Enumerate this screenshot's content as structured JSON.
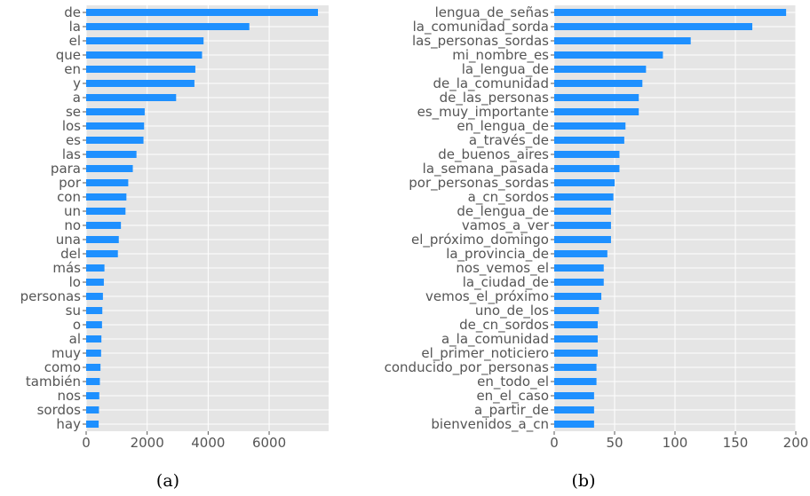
{
  "chart_data": [
    {
      "type": "bar",
      "orientation": "horizontal",
      "caption": "(a)",
      "categories": [
        "de",
        "la",
        "el",
        "que",
        "en",
        "y",
        "a",
        "se",
        "los",
        "es",
        "las",
        "para",
        "por",
        "con",
        "un",
        "no",
        "una",
        "del",
        "más",
        "lo",
        "personas",
        "su",
        "o",
        "al",
        "muy",
        "como",
        "también",
        "nos",
        "sordos",
        "hay"
      ],
      "values": [
        7600,
        5350,
        3850,
        3800,
        3580,
        3550,
        2950,
        1920,
        1900,
        1880,
        1650,
        1530,
        1380,
        1320,
        1290,
        1140,
        1070,
        1040,
        600,
        580,
        550,
        530,
        520,
        500,
        490,
        470,
        450,
        430,
        420,
        410
      ],
      "xticks": [
        0,
        2000,
        4000,
        6000
      ],
      "xlim": [
        0,
        7950
      ],
      "xlabel": "",
      "ylabel": "",
      "grid": true,
      "bar_color": "#1e90ff",
      "background": "#e5e5e5"
    },
    {
      "type": "bar",
      "orientation": "horizontal",
      "caption": "(b)",
      "categories": [
        "lengua_de_señas",
        "la_comunidad_sorda",
        "las_personas_sordas",
        "mi_nombre_es",
        "la_lengua_de",
        "de_la_comunidad",
        "de_las_personas",
        "es_muy_importante",
        "en_lengua_de",
        "a_través_de",
        "de_buenos_aires",
        "la_semana_pasada",
        "por_personas_sordas",
        "a_cn_sordos",
        "de_lengua_de",
        "vamos_a_ver",
        "el_próximo_domingo",
        "la_provincia_de",
        "nos_vemos_el",
        "la_ciudad_de",
        "vemos_el_próximo",
        "uno_de_los",
        "de_cn_sordos",
        "a_la_comunidad",
        "el_primer_noticiero",
        "conducido_por_personas",
        "en_todo_el",
        "en_el_caso",
        "a_partir_de",
        "bienvenidos_a_cn"
      ],
      "values": [
        192,
        164,
        113,
        90,
        76,
        73,
        70,
        70,
        59,
        58,
        54,
        54,
        50,
        49,
        47,
        47,
        47,
        44,
        41,
        41,
        39,
        37,
        36,
        36,
        36,
        35,
        35,
        33,
        33,
        33
      ],
      "xticks": [
        0,
        50,
        100,
        150,
        200
      ],
      "xlim": [
        0,
        200
      ],
      "xlabel": "",
      "ylabel": "",
      "grid": true,
      "bar_color": "#1e90ff",
      "background": "#e5e5e5"
    }
  ]
}
